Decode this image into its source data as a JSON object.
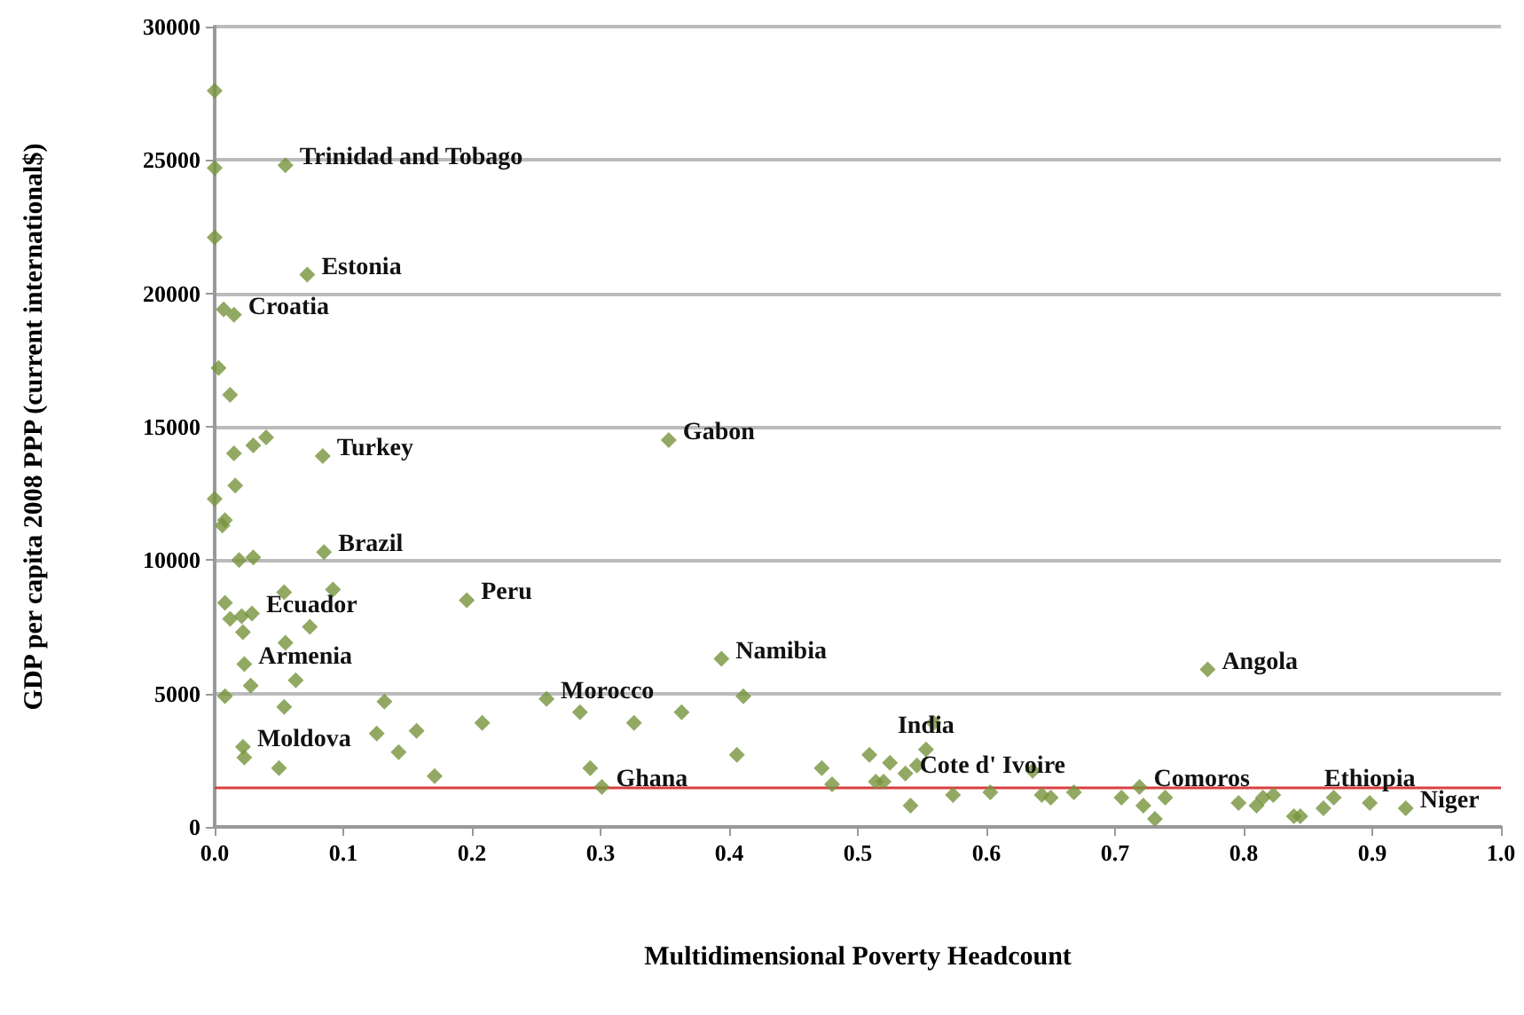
{
  "chart_data": {
    "type": "scatter",
    "xlabel": "Multidimensional Poverty Headcount",
    "ylabel": "GDP per capita 2008 PPP (current international$)",
    "xlim": [
      0,
      1
    ],
    "xticks": [
      {
        "value": 0,
        "label": "0.0"
      },
      0.1,
      0.2,
      0.3,
      0.4,
      0.5,
      0.6,
      0.7,
      0.8,
      0.9,
      {
        "value": 1,
        "label": "1.0"
      }
    ],
    "ylim": [
      0,
      30000
    ],
    "yticks": [
      0,
      5000,
      10000,
      15000,
      20000,
      25000,
      30000
    ],
    "grid": "y",
    "marker": "diamond",
    "series": [
      {
        "color": "#77933c",
        "x": [
          0,
          0,
          0.055,
          0,
          0.072,
          0.007,
          0.015,
          0.003,
          0.012,
          0.04,
          0.03,
          0.015,
          0.084,
          0.016,
          0,
          0.008,
          0.006,
          0.019,
          0.03,
          0.085,
          0.054,
          0.092,
          0.008,
          0.196,
          0.012,
          0.021,
          0.029,
          0.022,
          0.074,
          0.055,
          0.023,
          0.028,
          0.063,
          0.008,
          0.054,
          0.132,
          0.208,
          0.126,
          0.157,
          0.022,
          0.023,
          0.143,
          0.05,
          0.171,
          0.353,
          0.258,
          0.284,
          0.326,
          0.363,
          0.394,
          0.411,
          0.406,
          0.292,
          0.301,
          0.472,
          0.48,
          0.509,
          0.525,
          0.514,
          0.52,
          0.546,
          0.537,
          0.559,
          0.553,
          0.541,
          0.574,
          0.603,
          0.772,
          0.636,
          0.643,
          0.65,
          0.668,
          0.705,
          0.719,
          0.722,
          0.731,
          0.739,
          0.796,
          0.81,
          0.815,
          0.823,
          0.839,
          0.844,
          0.862,
          0.87,
          0.898,
          0.926
        ],
        "values": [
          27600,
          24700,
          24800,
          22100,
          20700,
          19400,
          19200,
          17200,
          16200,
          14600,
          14300,
          14000,
          13900,
          12800,
          12300,
          11500,
          11300,
          10000,
          10100,
          10300,
          8800,
          8900,
          8400,
          8500,
          7800,
          7900,
          8000,
          7300,
          7500,
          6900,
          6100,
          5300,
          5500,
          4900,
          4500,
          4700,
          3900,
          3500,
          3600,
          3000,
          2600,
          2800,
          2200,
          1900,
          14500,
          4800,
          4300,
          3900,
          4300,
          6300,
          4900,
          2700,
          2200,
          1500,
          2200,
          1600,
          2700,
          2400,
          1700,
          1700,
          2300,
          2000,
          3900,
          2900,
          800,
          1200,
          1300,
          5900,
          2100,
          1200,
          1100,
          1300,
          1100,
          1500,
          800,
          300,
          1100,
          900,
          800,
          1100,
          1200,
          400,
          400,
          700,
          1100,
          900,
          700
        ]
      }
    ],
    "ref_lines": [
      {
        "axis": "y",
        "value": 1500,
        "color": "#d94040"
      }
    ],
    "annotations": [
      {
        "text": "Trinidad and Tobago",
        "x": 0.055,
        "y": 24800
      },
      {
        "text": "Estonia",
        "x": 0.072,
        "y": 20700
      },
      {
        "text": "Croatia",
        "x": 0.015,
        "y": 19200
      },
      {
        "text": "Turkey",
        "x": 0.084,
        "y": 13900
      },
      {
        "text": "Gabon",
        "x": 0.353,
        "y": 14500
      },
      {
        "text": "Brazil",
        "x": 0.085,
        "y": 10300
      },
      {
        "text": "Peru",
        "x": 0.196,
        "y": 8500
      },
      {
        "text": "Ecuador",
        "x": 0.029,
        "y": 8000
      },
      {
        "text": "Armenia",
        "x": 0.023,
        "y": 6100
      },
      {
        "text": "Morocco",
        "x": 0.258,
        "y": 4800
      },
      {
        "text": "Namibia",
        "x": 0.394,
        "y": 6300
      },
      {
        "text": "Angola",
        "x": 0.772,
        "y": 5900
      },
      {
        "text": "Moldova",
        "x": 0.022,
        "y": 3000
      },
      {
        "text": "India",
        "x": 0.553,
        "y": 2900
      },
      {
        "text": "Ghana",
        "x": 0.301,
        "y": 1500
      },
      {
        "text": "Cote d' Ivoire",
        "x": 0.537,
        "y": 2000
      },
      {
        "text": "Comoros",
        "x": 0.719,
        "y": 1500
      },
      {
        "text": "Ethiopia",
        "x": 0.898,
        "y": 900
      },
      {
        "text": "Niger",
        "x": 0.926,
        "y": 700
      }
    ]
  }
}
